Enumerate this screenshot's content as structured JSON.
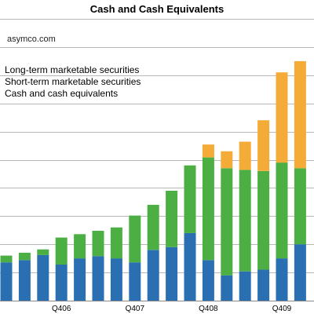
{
  "chart_data": {
    "type": "bar",
    "stacked": true,
    "title": "Cash and Cash Equivalents",
    "xlabel": "",
    "ylabel": "",
    "ylim": [
      0,
      50
    ],
    "grid": true,
    "legend_position": "top-left",
    "categories": [
      "",
      "",
      "",
      "Q406",
      "",
      "",
      "",
      "Q407",
      "",
      "",
      "",
      "Q408",
      "",
      "",
      "",
      "Q409",
      ""
    ],
    "tick_labels": [
      "Q406",
      "Q407",
      "Q408",
      "Q409"
    ],
    "series": [
      {
        "name": "Cash and cash equivalents",
        "color": "#2a6fb2",
        "values": [
          6.8,
          7.2,
          8.1,
          6.4,
          7.5,
          7.9,
          7.5,
          6.8,
          9.0,
          9.5,
          12.0,
          7.2,
          4.5,
          5.2,
          5.5,
          7.5,
          10.0
        ]
      },
      {
        "name": "Short-term marketable securities",
        "color": "#4caf43",
        "values": [
          1.2,
          1.3,
          1.0,
          4.8,
          4.3,
          4.5,
          5.5,
          8.3,
          8.0,
          10.0,
          12.0,
          18.2,
          19.0,
          18.0,
          17.5,
          17.0,
          13.5
        ]
      },
      {
        "name": "Long-term marketable securities",
        "color": "#f4ab37",
        "values": [
          0,
          0,
          0,
          0,
          0,
          0,
          0,
          0,
          0,
          0,
          0,
          2.3,
          3.0,
          5.0,
          9.0,
          16.0,
          19.0
        ]
      }
    ]
  },
  "watermark": "asymco.com",
  "legend": [
    "Long-term marketable securities",
    "Short-term marketable securities",
    "Cash and cash equivalents"
  ]
}
